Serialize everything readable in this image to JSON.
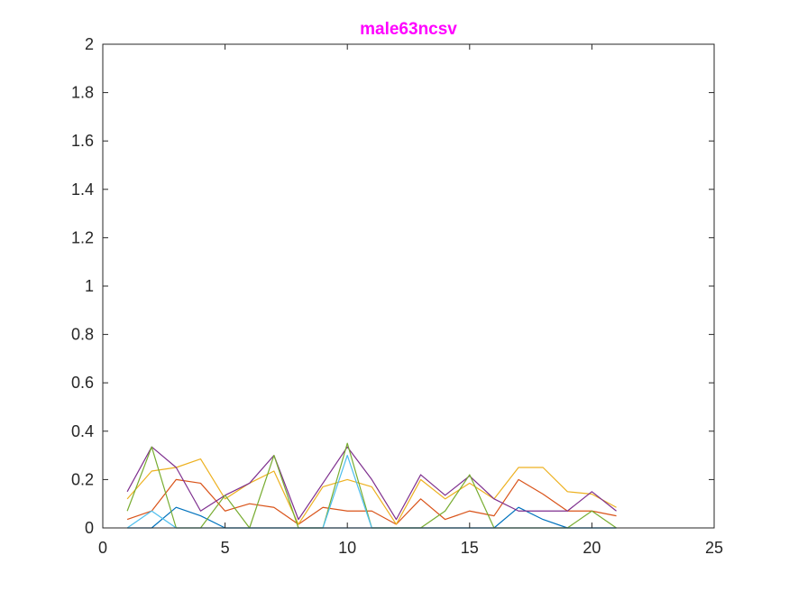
{
  "chart_data": {
    "type": "line",
    "title": "male63ncsv",
    "xlabel": "",
    "ylabel": "",
    "xlim": [
      0,
      25
    ],
    "ylim": [
      0,
      2
    ],
    "xticks": [
      0,
      5,
      10,
      15,
      20,
      25
    ],
    "yticks": [
      0,
      0.2,
      0.4,
      0.6,
      0.8,
      1,
      1.2,
      1.4,
      1.6,
      1.8,
      2
    ],
    "xtick_labels": [
      "0",
      "5",
      "10",
      "15",
      "20",
      "25"
    ],
    "ytick_labels": [
      "0",
      "0.2",
      "0.4",
      "0.6",
      "0.8",
      "1",
      "1.2",
      "1.4",
      "1.6",
      "1.8",
      "2"
    ],
    "grid": false,
    "legend": "none",
    "title_color": "#ff00ff",
    "x": [
      1,
      2,
      3,
      4,
      5,
      6,
      7,
      8,
      9,
      10,
      11,
      12,
      13,
      14,
      15,
      16,
      17,
      18,
      19,
      20,
      21
    ],
    "series": [
      {
        "color": "#0072BD",
        "values": [
          0,
          0,
          0.085,
          0.05,
          0,
          0,
          0,
          0,
          0,
          0,
          0,
          0,
          0,
          0,
          0,
          0,
          0.085,
          0.035,
          0,
          0,
          0
        ]
      },
      {
        "color": "#D95319",
        "values": [
          0.035,
          0.07,
          0.2,
          0.185,
          0.07,
          0.1,
          0.085,
          0.015,
          0.085,
          0.07,
          0.07,
          0.015,
          0.12,
          0.035,
          0.07,
          0.05,
          0.2,
          0.14,
          0.07,
          0.07,
          0.05
        ]
      },
      {
        "color": "#EDB120",
        "values": [
          0.12,
          0.235,
          0.25,
          0.285,
          0.12,
          0.185,
          0.235,
          0.015,
          0.17,
          0.2,
          0.17,
          0.015,
          0.2,
          0.12,
          0.185,
          0.12,
          0.25,
          0.25,
          0.15,
          0.14,
          0.085
        ]
      },
      {
        "color": "#7E2F8E",
        "values": [
          0.15,
          0.335,
          0.25,
          0.07,
          0.135,
          0.185,
          0.3,
          0.035,
          0.185,
          0.335,
          0.2,
          0.035,
          0.22,
          0.135,
          0.215,
          0.12,
          0.07,
          0.07,
          0.07,
          0.15,
          0.07
        ]
      },
      {
        "color": "#77AC30",
        "values": [
          0.07,
          0.335,
          0,
          0,
          0.135,
          0,
          0.3,
          0,
          0,
          0.35,
          0,
          0,
          0,
          0.07,
          0.22,
          0,
          0,
          0,
          0,
          0.07,
          0
        ]
      },
      {
        "color": "#4DBEEE",
        "values": [
          0,
          0.07,
          0,
          0,
          0,
          0,
          0,
          0,
          0,
          0.3,
          0,
          0,
          0,
          0,
          0,
          0,
          0,
          0,
          0,
          0,
          0
        ]
      }
    ]
  }
}
